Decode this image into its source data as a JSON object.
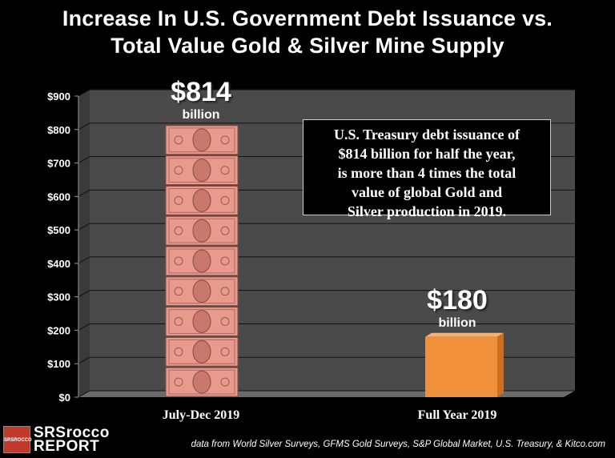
{
  "title_line1": "Increase In U.S. Government Debt Issuance vs.",
  "title_line2": "Total Value Gold & Silver Mine Supply",
  "annotation": {
    "line1": "U.S. Treasury debt issuance of",
    "line2": "$814 billion for half the year,",
    "line3": "is more than 4 times the total",
    "line4": "value of global Gold and",
    "line5": "Silver production in 2019."
  },
  "bar_labels": [
    {
      "big": "$814",
      "small": "billion"
    },
    {
      "big": "$180",
      "small": "billion"
    }
  ],
  "logo": {
    "line1": "SRSrocco",
    "line2": "REPORT",
    "badge": "SRSROCCO"
  },
  "source": "data from World Silver Surveys, GFMS Gold Surveys, S&P Global Market, U.S. Treasury, & Kitco.com",
  "colors": {
    "background": "#000000",
    "plot_wall": "#4a4a4a",
    "money_bar": "#e89a8c",
    "metal_bar": "#f0903a",
    "text": "#ffffff"
  },
  "chart_data": {
    "type": "bar",
    "categories": [
      "July-Dec 2019",
      "Full Year 2019"
    ],
    "values": [
      814,
      180
    ],
    "ylim": [
      0,
      900
    ],
    "yticks": [
      "$0",
      "$100",
      "$200",
      "$300",
      "$400",
      "$500",
      "$600",
      "$700",
      "$800",
      "$900"
    ],
    "grid": true,
    "bar_styles": [
      "stacked-dollar-bills",
      "solid-orange-3d"
    ]
  }
}
